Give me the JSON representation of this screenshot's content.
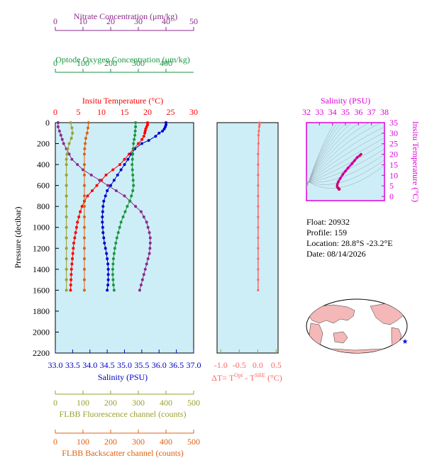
{
  "colors": {
    "nitrate": "#8b2a8b",
    "oxygen": "#1a9640",
    "temperature": "#ff0000",
    "salinity": "#0000cc",
    "fluorescence": "#9aa030",
    "backscatter": "#e06010",
    "delta_t": "#ff6666",
    "ts_axis": "#dd00dd",
    "plot_bg": "#cdeef7",
    "map_land": "#f4b8b8"
  },
  "axes": {
    "nitrate": {
      "label": "Nitrate Concentration (μm/kg)",
      "ticks": [
        "0",
        "10",
        "20",
        "30",
        "40",
        "50"
      ]
    },
    "oxygen": {
      "label": "Optode Oxygen Concentration (μm/kg)",
      "ticks": [
        "0",
        "100",
        "200",
        "300",
        "400"
      ]
    },
    "temperature": {
      "label": "Insitu Temperature (°C)",
      "ticks": [
        "0",
        "5",
        "10",
        "15",
        "20",
        "25",
        "30"
      ]
    },
    "salinity": {
      "label": "Salinity (PSU)",
      "ticks": [
        "33.0",
        "33.5",
        "34.0",
        "34.5",
        "35.0",
        "35.5",
        "36.0",
        "36.5",
        "37.0"
      ]
    },
    "pressure": {
      "label": "Pressure (decibar)",
      "ticks": [
        "0",
        "200",
        "400",
        "600",
        "800",
        "1000",
        "1200",
        "1400",
        "1600",
        "1800",
        "2000",
        "2200"
      ]
    },
    "fluorescence": {
      "label": "FLBB Fluorescence channel (counts)",
      "ticks": [
        "0",
        "100",
        "200",
        "300",
        "400",
        "500"
      ]
    },
    "backscatter": {
      "label": "FLBB Backscatter channel (counts)",
      "ticks": [
        "0",
        "100",
        "200",
        "300",
        "400",
        "500"
      ]
    },
    "delta_t": {
      "label_base": "ΔT= T",
      "label_sup1": "Opt",
      "label_mid": " - T",
      "label_sup2": "SBE",
      "label_end": " (°C)",
      "ticks": [
        "-1.0",
        "-0.5",
        "0.0",
        "0.5"
      ]
    },
    "ts_salinity": {
      "label": "Salinity (PSU)",
      "ticks": [
        "32",
        "33",
        "34",
        "35",
        "36",
        "37",
        "38"
      ]
    },
    "ts_temperature": {
      "label": "Insitu Temperature (°C)",
      "ticks": [
        "0",
        "5",
        "10",
        "15",
        "20",
        "25",
        "30",
        "35"
      ]
    }
  },
  "info": {
    "float": "Float:  20932",
    "profile": "Profile:  159",
    "location": "Location:  28.8°S  -23.2°E",
    "date": "Date:  08/14/2026"
  },
  "chart_data": [
    {
      "type": "line",
      "y_axis": "pressure (decibar)",
      "ylim": [
        2200,
        0
      ],
      "series": [
        {
          "name": "Insitu Temperature",
          "xlim": [
            0,
            30
          ],
          "points": [
            [
              20,
              0
            ],
            [
              20,
              20
            ],
            [
              19.8,
              40
            ],
            [
              19.6,
              60
            ],
            [
              19.5,
              80
            ],
            [
              19.4,
              100
            ],
            [
              19.2,
              130
            ],
            [
              18.8,
              160
            ],
            [
              18,
              200
            ],
            [
              17,
              250
            ],
            [
              16,
              300
            ],
            [
              15,
              350
            ],
            [
              14,
              400
            ],
            [
              12.5,
              450
            ],
            [
              11,
              500
            ],
            [
              10,
              550
            ],
            [
              9,
              600
            ],
            [
              8,
              650
            ],
            [
              7,
              700
            ],
            [
              6.3,
              750
            ],
            [
              5.8,
              800
            ],
            [
              5.4,
              850
            ],
            [
              5.1,
              900
            ],
            [
              4.8,
              950
            ],
            [
              4.6,
              1000
            ],
            [
              4.4,
              1050
            ],
            [
              4.2,
              1100
            ],
            [
              4,
              1150
            ],
            [
              3.9,
              1200
            ],
            [
              3.8,
              1250
            ],
            [
              3.7,
              1300
            ],
            [
              3.6,
              1350
            ],
            [
              3.5,
              1400
            ],
            [
              3.45,
              1450
            ],
            [
              3.4,
              1500
            ],
            [
              3.35,
              1550
            ],
            [
              3.3,
              1600
            ]
          ]
        },
        {
          "name": "Salinity",
          "xlim": [
            33.0,
            37.0
          ],
          "points": [
            [
              36.2,
              0
            ],
            [
              36.2,
              20
            ],
            [
              36.18,
              40
            ],
            [
              36.15,
              60
            ],
            [
              36.1,
              80
            ],
            [
              36.0,
              100
            ],
            [
              35.9,
              130
            ],
            [
              35.7,
              170
            ],
            [
              35.5,
              200
            ],
            [
              35.3,
              250
            ],
            [
              35.2,
              300
            ],
            [
              35.1,
              350
            ],
            [
              35.0,
              400
            ],
            [
              34.9,
              450
            ],
            [
              34.8,
              500
            ],
            [
              34.7,
              550
            ],
            [
              34.6,
              600
            ],
            [
              34.5,
              650
            ],
            [
              34.45,
              700
            ],
            [
              34.4,
              750
            ],
            [
              34.38,
              800
            ],
            [
              34.37,
              850
            ],
            [
              34.36,
              900
            ],
            [
              34.36,
              950
            ],
            [
              34.37,
              1000
            ],
            [
              34.38,
              1050
            ],
            [
              34.4,
              1100
            ],
            [
              34.42,
              1150
            ],
            [
              34.45,
              1200
            ],
            [
              34.48,
              1250
            ],
            [
              34.5,
              1300
            ],
            [
              34.52,
              1350
            ],
            [
              34.53,
              1400
            ],
            [
              34.53,
              1450
            ],
            [
              34.53,
              1500
            ],
            [
              34.52,
              1550
            ],
            [
              34.5,
              1600
            ]
          ]
        },
        {
          "name": "Nitrate Concentration",
          "xlim": [
            0,
            50
          ],
          "points": [
            [
              1,
              0
            ],
            [
              1,
              40
            ],
            [
              1.5,
              80
            ],
            [
              2,
              120
            ],
            [
              2.5,
              160
            ],
            [
              3,
              200
            ],
            [
              4,
              250
            ],
            [
              5,
              300
            ],
            [
              6,
              350
            ],
            [
              8,
              400
            ],
            [
              10,
              450
            ],
            [
              13,
              500
            ],
            [
              16,
              550
            ],
            [
              19,
              600
            ],
            [
              22,
              650
            ],
            [
              25,
              700
            ],
            [
              27,
              750
            ],
            [
              29,
              800
            ],
            [
              31,
              850
            ],
            [
              32,
              900
            ],
            [
              33,
              950
            ],
            [
              33.5,
              1000
            ],
            [
              34,
              1050
            ],
            [
              34.3,
              1100
            ],
            [
              34.3,
              1150
            ],
            [
              34.2,
              1200
            ],
            [
              34,
              1250
            ],
            [
              33.5,
              1300
            ],
            [
              33,
              1350
            ],
            [
              32.5,
              1400
            ],
            [
              32,
              1450
            ],
            [
              31.5,
              1500
            ],
            [
              31,
              1550
            ],
            [
              30.5,
              1600
            ]
          ]
        },
        {
          "name": "Optode Oxygen Concentration",
          "xlim": [
            0,
            400
          ],
          "points": [
            [
              232,
              0
            ],
            [
              232,
              40
            ],
            [
              231,
              80
            ],
            [
              230,
              120
            ],
            [
              228,
              160
            ],
            [
              226,
              200
            ],
            [
              225,
              250
            ],
            [
              224,
              300
            ],
            [
              223,
              350
            ],
            [
              222,
              400
            ],
            [
              223,
              450
            ],
            [
              224,
              500
            ],
            [
              225,
              550
            ],
            [
              226,
              600
            ],
            [
              224,
              650
            ],
            [
              220,
              700
            ],
            [
              215,
              750
            ],
            [
              208,
              800
            ],
            [
              202,
              850
            ],
            [
              196,
              900
            ],
            [
              190,
              950
            ],
            [
              186,
              1000
            ],
            [
              182,
              1050
            ],
            [
              178,
              1100
            ],
            [
              175,
              1150
            ],
            [
              172,
              1200
            ],
            [
              170,
              1250
            ],
            [
              168,
              1300
            ],
            [
              167,
              1350
            ],
            [
              166,
              1400
            ],
            [
              166,
              1450
            ],
            [
              167,
              1500
            ],
            [
              168,
              1550
            ],
            [
              170,
              1600
            ]
          ]
        },
        {
          "name": "FLBB Fluorescence channel",
          "xlim": [
            0,
            500
          ],
          "points": [
            [
              55,
              0
            ],
            [
              60,
              50
            ],
            [
              62,
              100
            ],
            [
              58,
              150
            ],
            [
              50,
              200
            ],
            [
              45,
              250
            ],
            [
              42,
              300
            ],
            [
              40,
              350
            ],
            [
              40,
              400
            ],
            [
              40,
              500
            ],
            [
              40,
              600
            ],
            [
              40,
              700
            ],
            [
              40,
              800
            ],
            [
              40,
              900
            ],
            [
              40,
              1000
            ],
            [
              40,
              1100
            ],
            [
              40,
              1200
            ],
            [
              40,
              1300
            ],
            [
              40,
              1400
            ],
            [
              40,
              1500
            ],
            [
              40,
              1600
            ]
          ]
        },
        {
          "name": "FLBB Backscatter channel",
          "xlim": [
            0,
            500
          ],
          "points": [
            [
              120,
              0
            ],
            [
              118,
              50
            ],
            [
              115,
              100
            ],
            [
              110,
              150
            ],
            [
              108,
              200
            ],
            [
              106,
              250
            ],
            [
              105,
              300
            ],
            [
              105,
              400
            ],
            [
              105,
              500
            ],
            [
              105,
              600
            ],
            [
              105,
              700
            ],
            [
              105,
              800
            ],
            [
              105,
              900
            ],
            [
              105,
              1000
            ],
            [
              105,
              1100
            ],
            [
              105,
              1200
            ],
            [
              105,
              1300
            ],
            [
              105,
              1400
            ],
            [
              105,
              1500
            ],
            [
              105,
              1600
            ]
          ]
        }
      ]
    },
    {
      "type": "line",
      "name": "Delta T",
      "xlim": [
        -1.1,
        0.55
      ],
      "ylim": [
        2200,
        0
      ],
      "points": [
        [
          0.05,
          0
        ],
        [
          0.05,
          20
        ],
        [
          0.04,
          40
        ],
        [
          0.03,
          80
        ],
        [
          0.02,
          120
        ],
        [
          0.02,
          200
        ],
        [
          0.01,
          300
        ],
        [
          0.01,
          400
        ],
        [
          0.01,
          500
        ],
        [
          0.01,
          600
        ],
        [
          0.01,
          700
        ],
        [
          0.01,
          800
        ],
        [
          0.01,
          900
        ],
        [
          0.01,
          1000
        ],
        [
          0.01,
          1100
        ],
        [
          0.01,
          1200
        ],
        [
          0.01,
          1300
        ],
        [
          0.01,
          1400
        ],
        [
          0.01,
          1500
        ],
        [
          0.01,
          1600
        ]
      ]
    },
    {
      "type": "scatter",
      "name": "T-S diagram",
      "xlim": [
        32,
        38
      ],
      "ylim": [
        -2,
        35
      ],
      "points": [
        [
          36.2,
          20
        ],
        [
          36.1,
          19.4
        ],
        [
          35.9,
          18.5
        ],
        [
          35.7,
          17
        ],
        [
          35.5,
          15.5
        ],
        [
          35.2,
          13.5
        ],
        [
          35.0,
          12
        ],
        [
          34.8,
          10.5
        ],
        [
          34.6,
          8.5
        ],
        [
          34.45,
          7
        ],
        [
          34.38,
          5.8
        ],
        [
          34.36,
          5
        ],
        [
          34.37,
          4.6
        ],
        [
          34.4,
          4.2
        ],
        [
          34.45,
          3.9
        ],
        [
          34.5,
          3.7
        ],
        [
          34.53,
          3.5
        ],
        [
          34.53,
          3.4
        ],
        [
          34.5,
          3.3
        ]
      ]
    }
  ]
}
